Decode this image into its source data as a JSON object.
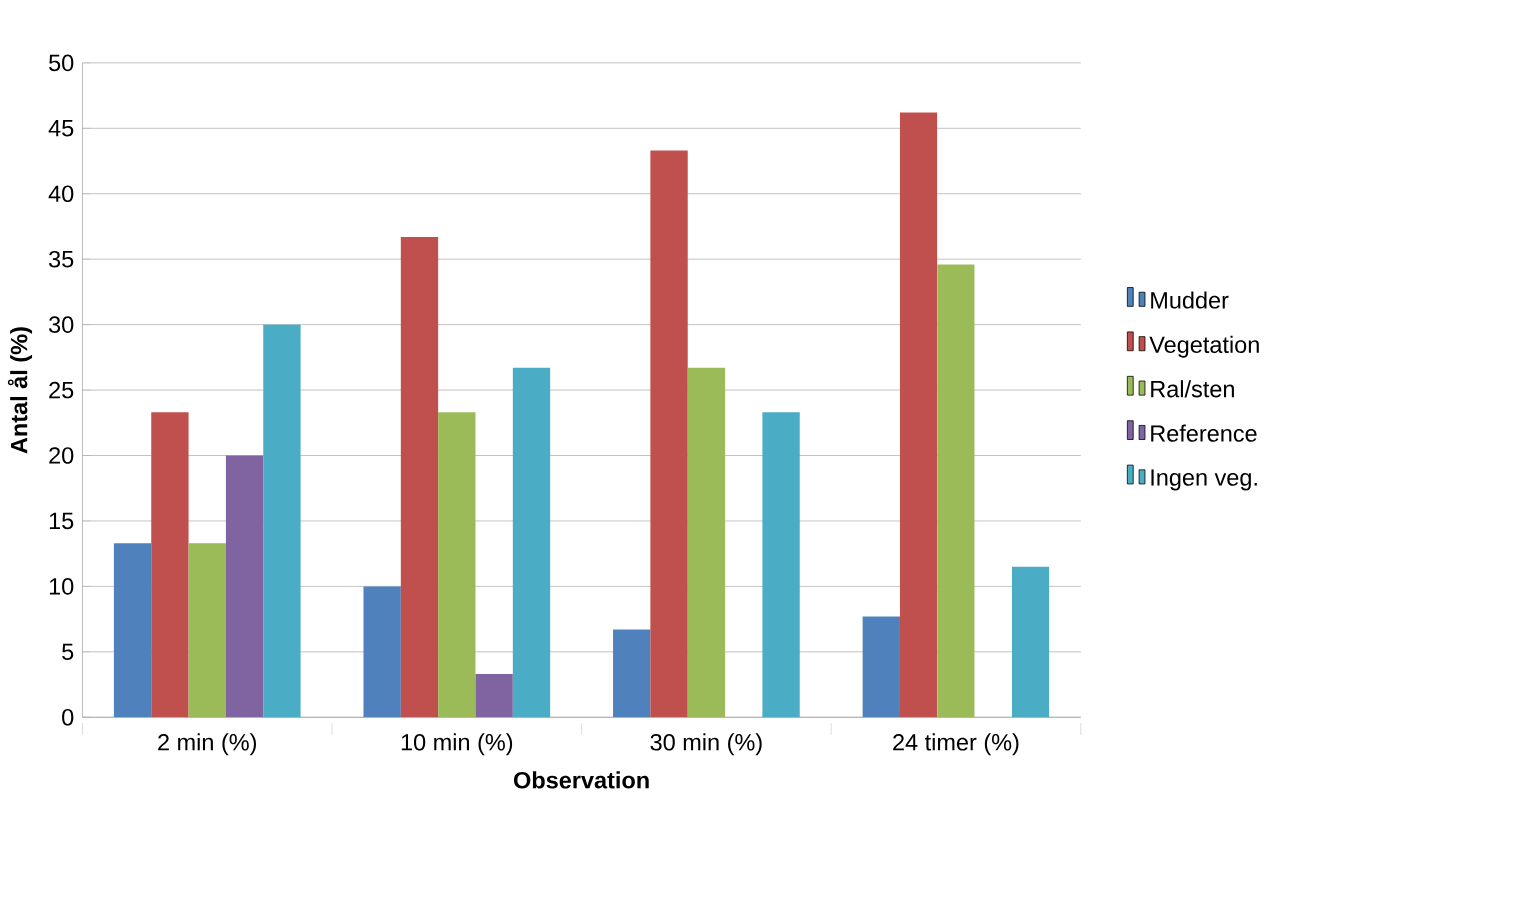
{
  "chart_data": {
    "type": "bar",
    "xlabel": "Observation",
    "ylabel": "Antal ål (%)",
    "categories": [
      "2 min (%)",
      "10 min (%)",
      "30 min (%)",
      "24 timer (%)"
    ],
    "series": [
      {
        "name": "Mudder",
        "color": "#4f81bd",
        "values": [
          13.3,
          10.0,
          6.7,
          7.7
        ]
      },
      {
        "name": "Vegetation",
        "color": "#c0504d",
        "values": [
          23.3,
          36.7,
          43.3,
          46.2
        ]
      },
      {
        "name": "Ral/sten",
        "color": "#9bbb59",
        "values": [
          13.3,
          23.3,
          26.7,
          34.6
        ]
      },
      {
        "name": "Reference",
        "color": "#8064a2",
        "values": [
          20.0,
          3.3,
          0,
          0
        ]
      },
      {
        "name": "Ingen veg.",
        "color": "#4bacc6",
        "values": [
          30.0,
          26.7,
          23.3,
          11.5
        ]
      }
    ],
    "ylim": [
      0,
      50
    ],
    "yticks": [
      0,
      5,
      10,
      15,
      20,
      25,
      30,
      35,
      40,
      45,
      50
    ],
    "grid": "y",
    "legend": "right"
  }
}
